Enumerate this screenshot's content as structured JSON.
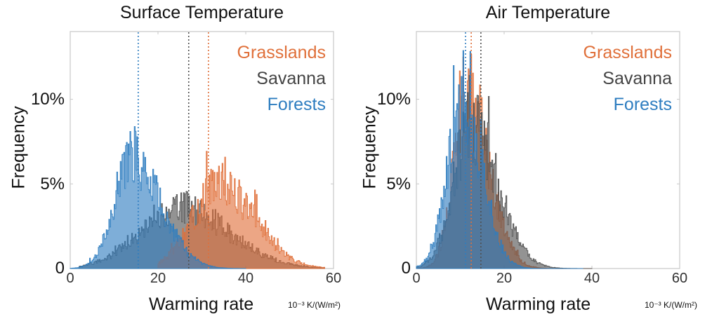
{
  "chart_data": [
    {
      "type": "area",
      "subtype": "histogram",
      "title": "Surface Temperature",
      "xlabel": "Warming rate",
      "x_units": "10-3 K/(W/m2)",
      "ylabel": "Frequency",
      "xlim": [
        0,
        60
      ],
      "ylim": [
        0,
        14
      ],
      "x_ticks": [
        "0",
        "20",
        "40",
        "60"
      ],
      "y_ticks": [
        "0",
        "5%",
        "10%"
      ],
      "legend_position": "top-right",
      "series": [
        {
          "name": "Grasslands",
          "color": "#E0703A",
          "mean": 31.5,
          "peak_x": 34,
          "peak_pct": 5.3,
          "range": [
            20,
            58
          ],
          "shape": {
            "center": 34,
            "sd_left": 6,
            "sd_right": 8,
            "amp": 4.9
          }
        },
        {
          "name": "Savanna",
          "color": "#505050",
          "mean": 27,
          "peak_x": 27,
          "peak_pct": 4.3,
          "range": [
            2,
            58
          ],
          "shape": {
            "center": 25,
            "sd_left": 9,
            "sd_right": 11,
            "amp": 3.6
          }
        },
        {
          "name": "Forests",
          "color": "#2E7DC0",
          "mean": 15.5,
          "peak_x": 13,
          "peak_pct": 7.6,
          "range": [
            0,
            40
          ],
          "shape": {
            "center": 14,
            "sd_left": 4,
            "sd_right": 6.5,
            "amp": 6.6
          }
        }
      ]
    },
    {
      "type": "area",
      "subtype": "histogram",
      "title": "Air Temperature",
      "xlabel": "Warming rate",
      "x_units": "10-3 K/(W/m2)",
      "ylabel": "Frequency",
      "xlim": [
        0,
        60
      ],
      "ylim": [
        0,
        14
      ],
      "x_ticks": [
        "0",
        "20",
        "40",
        "60"
      ],
      "y_ticks": [
        "0",
        "5%",
        "10%"
      ],
      "legend_position": "top-right",
      "series": [
        {
          "name": "Grasslands",
          "color": "#E0703A",
          "mean": 12.5,
          "peak_x": 11,
          "peak_pct": 12.8,
          "range": [
            0,
            40
          ],
          "shape": {
            "center": 11.5,
            "sd_left": 3,
            "sd_right": 5,
            "amp": 10.2
          }
        },
        {
          "name": "Savanna",
          "color": "#505050",
          "mean": 14.7,
          "peak_x": 12,
          "peak_pct": 9.0,
          "range": [
            0,
            40
          ],
          "shape": {
            "center": 12.5,
            "sd_left": 4,
            "sd_right": 6,
            "amp": 8.6
          }
        },
        {
          "name": "Forests",
          "color": "#2E7DC0",
          "mean": 11.2,
          "peak_x": 10,
          "peak_pct": 10.5,
          "range": [
            0,
            38
          ],
          "shape": {
            "center": 10.5,
            "sd_left": 3.5,
            "sd_right": 4.5,
            "amp": 9.3
          }
        }
      ]
    }
  ],
  "panels": [
    {
      "title": "Surface Temperature",
      "ylabel": "Frequency",
      "xlabel": "Warming rate",
      "units": "10⁻³ K/(W/m²)",
      "yticks": [
        "0",
        "5%",
        "10%"
      ],
      "xticks": [
        "0",
        "20",
        "40",
        "60"
      ],
      "legend": [
        "Grasslands",
        "Savanna",
        "Forests"
      ]
    },
    {
      "title": "Air Temperature",
      "ylabel": "Frequency",
      "xlabel": "Warming rate",
      "units": "10⁻³ K/(W/m²)",
      "yticks": [
        "0",
        "5%",
        "10%"
      ],
      "xticks": [
        "0",
        "20",
        "40",
        "60"
      ],
      "legend": [
        "Grasslands",
        "Savanna",
        "Forests"
      ]
    }
  ],
  "colors": {
    "Grasslands": "#E0703A",
    "Savanna": "#505050",
    "Forests": "#2E7DC0",
    "axis": "#c8c8c8"
  }
}
